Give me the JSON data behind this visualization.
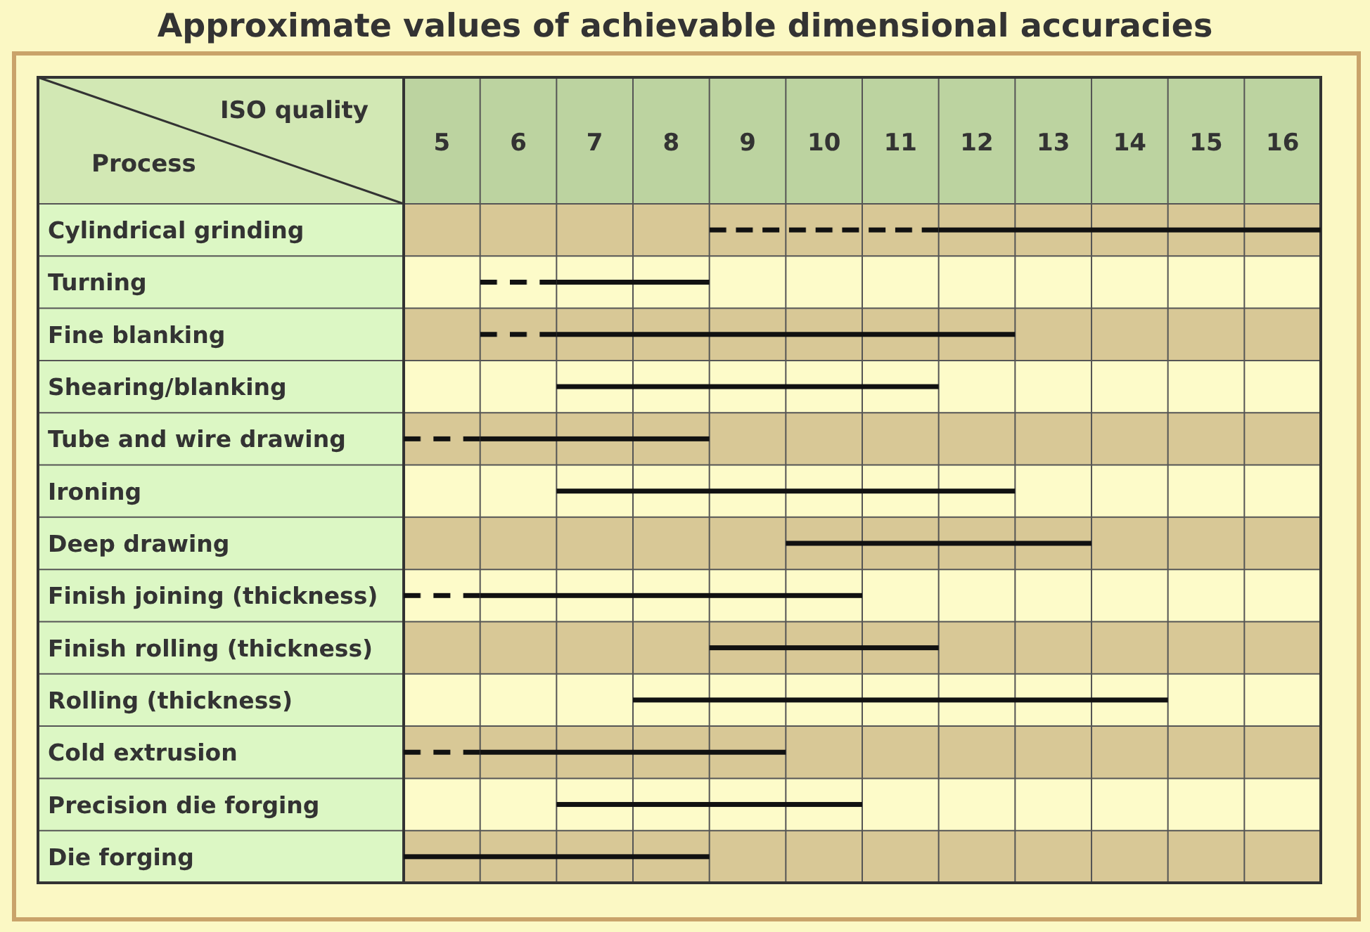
{
  "chart_data": {
    "type": "bar",
    "orientation": "horizontal",
    "title": "Approximate values of achievable dimensional accuracies",
    "xlabel": "ISO quality",
    "ylabel": "Process",
    "categories": [
      "Cylindrical grinding",
      "Turning",
      "Fine blanking",
      "Shearing/blanking",
      "Tube and wire drawing",
      "Ironing",
      "Deep drawing",
      "Finish joining (thickness)",
      "Finish rolling (thickness)",
      "Rolling (thickness)",
      "Cold extrusion",
      "Precision die forging",
      "Die forging"
    ],
    "series": [
      {
        "color": "#111111",
        "line_style": "dashed",
        "base": [
          8.5,
          5.5,
          5.5,
          null,
          4.5,
          null,
          null,
          4.5,
          null,
          null,
          4.5,
          null,
          null
        ],
        "values": [
          3,
          1,
          1,
          null,
          1,
          null,
          null,
          1,
          null,
          null,
          1,
          null,
          null
        ]
      },
      {
        "color": "#111111",
        "line_style": "solid",
        "base": [
          11.5,
          6.5,
          6.5,
          6.5,
          5.5,
          6.5,
          9.5,
          5.5,
          8.5,
          7.5,
          5.5,
          6.5,
          4.5
        ],
        "values": [
          5,
          2,
          6,
          5,
          3,
          6,
          4,
          5,
          3,
          7,
          4,
          4,
          4
        ]
      }
    ],
    "xlim": [
      4.5,
      16.5
    ],
    "xticks": [
      5,
      6,
      7,
      8,
      9,
      10,
      11,
      12,
      13,
      14,
      15,
      16
    ],
    "grid": true
  }
}
